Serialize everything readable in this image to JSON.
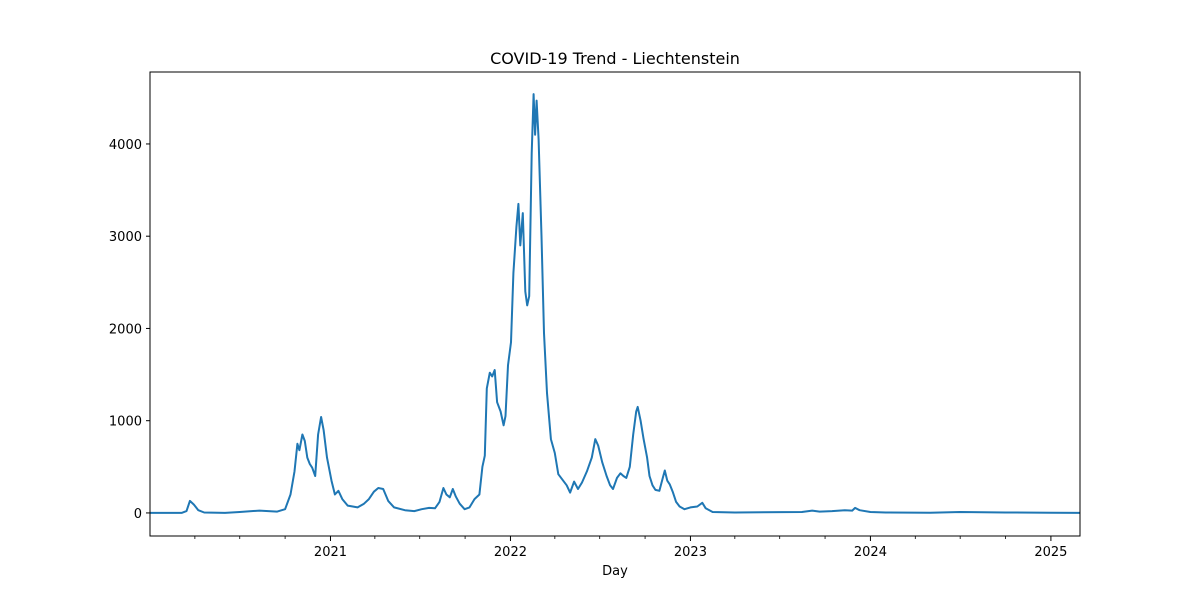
{
  "chart_data": {
    "type": "line",
    "title": "COVID-19 Trend - Liechtenstein",
    "xlabel": "Day",
    "ylabel": "",
    "xlim": [
      "2020-01-01",
      "2025-03-01"
    ],
    "ylim": [
      -250,
      4780
    ],
    "x_ticks": [
      {
        "date": "2021-01-01",
        "label": "2021"
      },
      {
        "date": "2022-01-01",
        "label": "2022"
      },
      {
        "date": "2023-01-01",
        "label": "2023"
      },
      {
        "date": "2024-01-01",
        "label": "2024"
      },
      {
        "date": "2025-01-01",
        "label": "2025"
      }
    ],
    "x_minor_ticks": [
      "2020-04-01",
      "2020-07-01",
      "2020-10-01",
      "2021-04-01",
      "2021-07-01",
      "2021-10-01",
      "2022-04-01",
      "2022-07-01",
      "2022-10-01",
      "2023-04-01",
      "2023-07-01",
      "2023-10-01",
      "2024-04-01",
      "2024-07-01",
      "2024-10-01"
    ],
    "y_ticks": [
      0,
      1000,
      2000,
      3000,
      4000
    ],
    "grid": false,
    "series": [
      {
        "color": "#1f77b4",
        "points": [
          [
            "2020-01-01",
            0
          ],
          [
            "2020-03-05",
            0
          ],
          [
            "2020-03-15",
            20
          ],
          [
            "2020-03-22",
            130
          ],
          [
            "2020-03-30",
            90
          ],
          [
            "2020-04-08",
            30
          ],
          [
            "2020-04-20",
            5
          ],
          [
            "2020-06-01",
            0
          ],
          [
            "2020-07-01",
            10
          ],
          [
            "2020-08-10",
            25
          ],
          [
            "2020-09-15",
            15
          ],
          [
            "2020-10-01",
            40
          ],
          [
            "2020-10-12",
            200
          ],
          [
            "2020-10-20",
            450
          ],
          [
            "2020-10-26",
            750
          ],
          [
            "2020-10-30",
            680
          ],
          [
            "2020-11-05",
            850
          ],
          [
            "2020-11-10",
            780
          ],
          [
            "2020-11-15",
            600
          ],
          [
            "2020-11-20",
            530
          ],
          [
            "2020-11-25",
            490
          ],
          [
            "2020-12-01",
            400
          ],
          [
            "2020-12-07",
            850
          ],
          [
            "2020-12-13",
            1040
          ],
          [
            "2020-12-18",
            900
          ],
          [
            "2020-12-25",
            600
          ],
          [
            "2021-01-03",
            350
          ],
          [
            "2021-01-10",
            200
          ],
          [
            "2021-01-17",
            240
          ],
          [
            "2021-01-25",
            150
          ],
          [
            "2021-02-05",
            80
          ],
          [
            "2021-02-15",
            70
          ],
          [
            "2021-02-25",
            60
          ],
          [
            "2021-03-10",
            100
          ],
          [
            "2021-03-20",
            150
          ],
          [
            "2021-03-30",
            230
          ],
          [
            "2021-04-08",
            270
          ],
          [
            "2021-04-18",
            260
          ],
          [
            "2021-04-28",
            130
          ],
          [
            "2021-05-10",
            60
          ],
          [
            "2021-06-01",
            30
          ],
          [
            "2021-06-20",
            20
          ],
          [
            "2021-07-05",
            40
          ],
          [
            "2021-07-20",
            55
          ],
          [
            "2021-08-01",
            50
          ],
          [
            "2021-08-10",
            120
          ],
          [
            "2021-08-18",
            270
          ],
          [
            "2021-08-24",
            200
          ],
          [
            "2021-08-31",
            170
          ],
          [
            "2021-09-06",
            260
          ],
          [
            "2021-09-12",
            180
          ],
          [
            "2021-09-20",
            100
          ],
          [
            "2021-09-30",
            40
          ],
          [
            "2021-10-10",
            60
          ],
          [
            "2021-10-20",
            150
          ],
          [
            "2021-10-30",
            200
          ],
          [
            "2021-11-05",
            500
          ],
          [
            "2021-11-10",
            620
          ],
          [
            "2021-11-14",
            1350
          ],
          [
            "2021-11-20",
            1520
          ],
          [
            "2021-11-25",
            1480
          ],
          [
            "2021-11-30",
            1550
          ],
          [
            "2021-12-05",
            1200
          ],
          [
            "2021-12-12",
            1100
          ],
          [
            "2021-12-18",
            950
          ],
          [
            "2021-12-22",
            1050
          ],
          [
            "2021-12-27",
            1600
          ],
          [
            "2022-01-02",
            1850
          ],
          [
            "2022-01-07",
            2600
          ],
          [
            "2022-01-13",
            3100
          ],
          [
            "2022-01-17",
            3350
          ],
          [
            "2022-01-21",
            2900
          ],
          [
            "2022-01-26",
            3250
          ],
          [
            "2022-01-31",
            2400
          ],
          [
            "2022-02-04",
            2250
          ],
          [
            "2022-02-08",
            2350
          ],
          [
            "2022-02-13",
            3900
          ],
          [
            "2022-02-17",
            4540
          ],
          [
            "2022-02-20",
            4100
          ],
          [
            "2022-02-23",
            4470
          ],
          [
            "2022-02-27",
            4050
          ],
          [
            "2022-03-05",
            3000
          ],
          [
            "2022-03-10",
            1950
          ],
          [
            "2022-03-16",
            1300
          ],
          [
            "2022-03-24",
            800
          ],
          [
            "2022-04-01",
            650
          ],
          [
            "2022-04-08",
            420
          ],
          [
            "2022-04-18",
            350
          ],
          [
            "2022-04-25",
            300
          ],
          [
            "2022-05-02",
            220
          ],
          [
            "2022-05-10",
            340
          ],
          [
            "2022-05-18",
            260
          ],
          [
            "2022-05-26",
            330
          ],
          [
            "2022-06-05",
            450
          ],
          [
            "2022-06-15",
            600
          ],
          [
            "2022-06-22",
            800
          ],
          [
            "2022-06-28",
            730
          ],
          [
            "2022-07-06",
            550
          ],
          [
            "2022-07-15",
            400
          ],
          [
            "2022-07-22",
            300
          ],
          [
            "2022-07-28",
            260
          ],
          [
            "2022-08-05",
            380
          ],
          [
            "2022-08-12",
            430
          ],
          [
            "2022-08-18",
            400
          ],
          [
            "2022-08-24",
            380
          ],
          [
            "2022-08-31",
            500
          ],
          [
            "2022-09-07",
            850
          ],
          [
            "2022-09-13",
            1100
          ],
          [
            "2022-09-16",
            1150
          ],
          [
            "2022-09-22",
            1000
          ],
          [
            "2022-09-28",
            800
          ],
          [
            "2022-10-05",
            600
          ],
          [
            "2022-10-10",
            400
          ],
          [
            "2022-10-16",
            300
          ],
          [
            "2022-10-22",
            250
          ],
          [
            "2022-10-30",
            240
          ],
          [
            "2022-11-06",
            380
          ],
          [
            "2022-11-10",
            460
          ],
          [
            "2022-11-15",
            350
          ],
          [
            "2022-11-20",
            310
          ],
          [
            "2022-11-26",
            230
          ],
          [
            "2022-12-03",
            120
          ],
          [
            "2022-12-10",
            70
          ],
          [
            "2022-12-20",
            40
          ],
          [
            "2023-01-01",
            60
          ],
          [
            "2023-01-15",
            70
          ],
          [
            "2023-01-25",
            110
          ],
          [
            "2023-02-01",
            50
          ],
          [
            "2023-02-15",
            10
          ],
          [
            "2023-04-01",
            5
          ],
          [
            "2023-08-15",
            10
          ],
          [
            "2023-09-05",
            25
          ],
          [
            "2023-09-20",
            15
          ],
          [
            "2023-10-15",
            20
          ],
          [
            "2023-11-10",
            30
          ],
          [
            "2023-11-25",
            25
          ],
          [
            "2023-12-01",
            55
          ],
          [
            "2023-12-10",
            30
          ],
          [
            "2024-01-01",
            10
          ],
          [
            "2024-02-01",
            5
          ],
          [
            "2024-05-01",
            3
          ],
          [
            "2024-07-01",
            10
          ],
          [
            "2024-10-01",
            5
          ],
          [
            "2025-01-01",
            3
          ],
          [
            "2025-03-01",
            0
          ]
        ]
      }
    ]
  }
}
